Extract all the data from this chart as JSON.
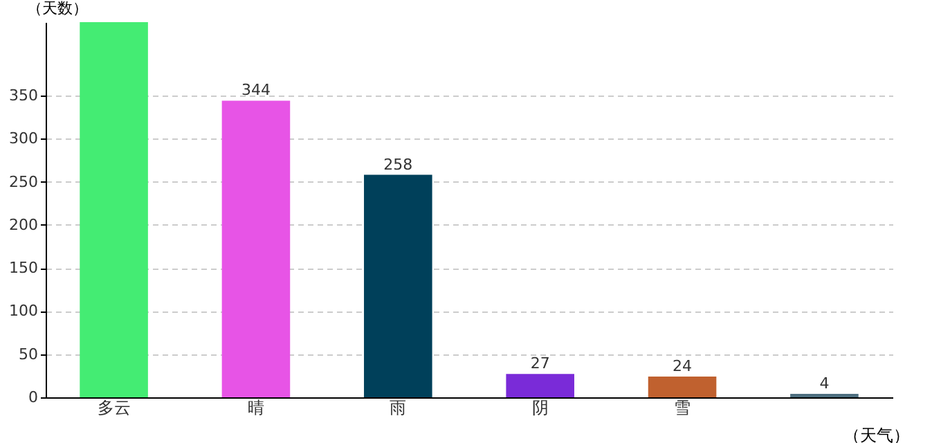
{
  "chart_data": {
    "type": "bar",
    "xlabel": "（天气）",
    "ylabel": "（天数）",
    "categories": [
      "多云",
      "晴",
      "雨",
      "阴",
      "雪",
      null
    ],
    "values": [
      435,
      344,
      258,
      27,
      24,
      4
    ],
    "value_labels": [
      null,
      "344",
      "258",
      "27",
      "24",
      "4"
    ],
    "colors": [
      "#44ec73",
      "#e754e6",
      "#00405a",
      "#7a2bd8",
      "#c0612f",
      "#4e6f80"
    ],
    "ylim": [
      0,
      435
    ],
    "yticks": [
      0,
      50,
      100,
      150,
      200,
      250,
      300,
      350
    ],
    "grid": "y"
  }
}
